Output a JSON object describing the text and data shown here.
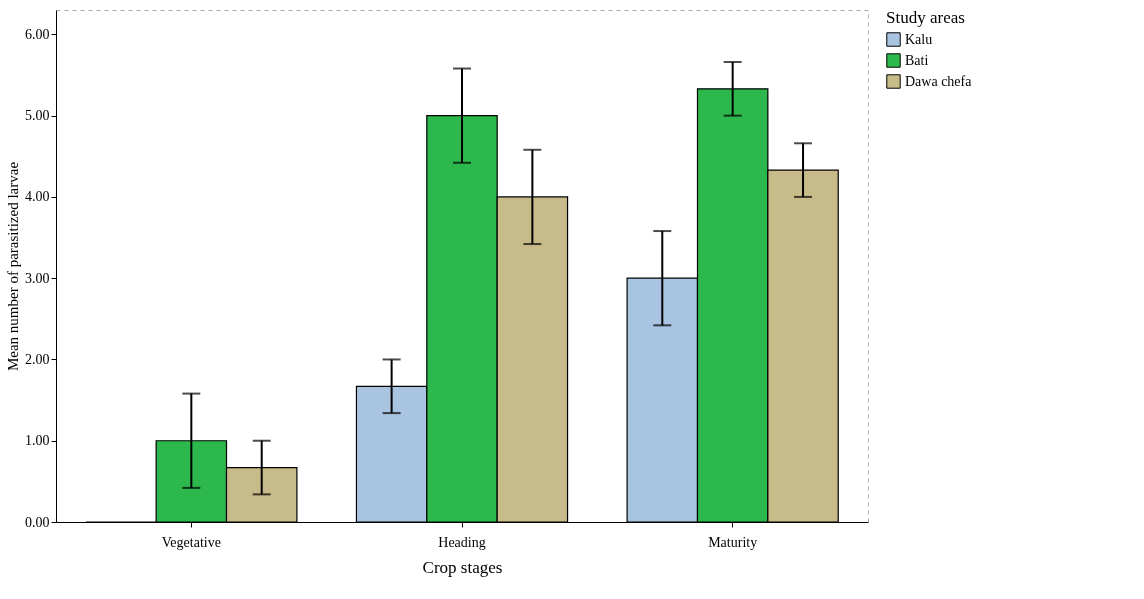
{
  "chart_data": {
    "type": "bar",
    "xlabel": "Crop stages",
    "ylabel": "Mean number of parasitized larvae",
    "legend_title": "Study areas",
    "categories": [
      "Vegetative",
      "Heading",
      "Maturity"
    ],
    "series": [
      {
        "name": "Kalu",
        "color": "#a9c4e0",
        "values": [
          0,
          1.67,
          3.0
        ],
        "errors": [
          null,
          0.33,
          0.58
        ]
      },
      {
        "name": "Bati",
        "color": "#2db84d",
        "values": [
          1.0,
          5.0,
          5.33
        ],
        "errors": [
          0.58,
          0.58,
          0.33
        ]
      },
      {
        "name": "Dawa chefa",
        "color": "#c8bb8a",
        "values": [
          0.67,
          4.0,
          4.33
        ],
        "errors": [
          0.33,
          0.58,
          0.33
        ]
      }
    ],
    "ylim": [
      0,
      6.3
    ],
    "yticks": [
      {
        "value": 0,
        "label": "0.00"
      },
      {
        "value": 1,
        "label": "1.00"
      },
      {
        "value": 2,
        "label": "2.00"
      },
      {
        "value": 3,
        "label": "3.00"
      },
      {
        "value": 4,
        "label": "4.00"
      },
      {
        "value": 5,
        "label": "5.00"
      },
      {
        "value": 6,
        "label": "6.00"
      }
    ],
    "grid": false,
    "legend": "top right"
  }
}
